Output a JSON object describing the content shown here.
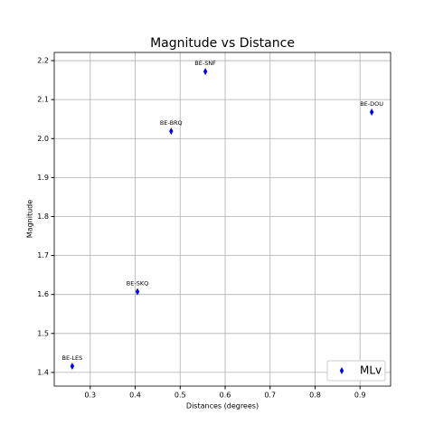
{
  "chart_data": {
    "type": "scatter",
    "title": "Magnitude vs Distance",
    "xlabel": "Distances (degrees)",
    "ylabel": "Magnitude",
    "series": [
      {
        "name": "MLv",
        "color": "#0000ff",
        "x": [
          0.26,
          0.405,
          0.48,
          0.556,
          0.926
        ],
        "values": [
          1.416,
          1.607,
          2.019,
          2.172,
          2.068
        ],
        "point_labels": [
          "BE-LES",
          "BE-SKQ",
          "BE-BRQ",
          "BE-SNF",
          "BE-DOU"
        ]
      }
    ],
    "xlim": [
      0.22,
      0.968
    ],
    "ylim": [
      1.365,
      2.221
    ],
    "xticks": [
      0.3,
      0.4,
      0.5,
      0.6,
      0.7,
      0.8,
      0.9
    ],
    "yticks": [
      1.4,
      1.5,
      1.6,
      1.7,
      1.8,
      1.9,
      {
        "value": 2,
        "label": "2.0"
      },
      2.1,
      2.2
    ],
    "grid": true,
    "legend": "lower right"
  }
}
